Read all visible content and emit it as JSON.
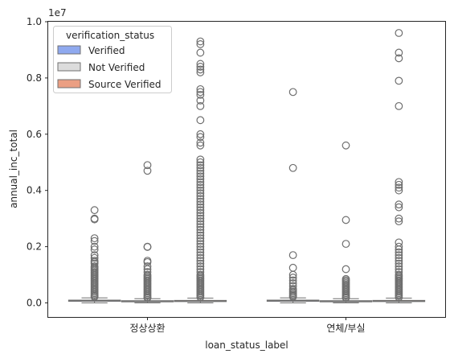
{
  "chart_data": {
    "type": "box",
    "title": "",
    "xlabel": "loan_status_label",
    "ylabel": "annual_inc_total",
    "y_offset_text": "1e7",
    "y_scale": 10000000,
    "ylim": [
      -0.05,
      1.0
    ],
    "yticks": [
      "0.0",
      "0.2",
      "0.4",
      "0.6",
      "0.8",
      "1.0"
    ],
    "ytick_values": [
      0.0,
      0.2,
      0.4,
      0.6,
      0.8,
      1.0
    ],
    "categories": [
      "정상상환",
      "연체/부실"
    ],
    "grid": false,
    "legend": {
      "title": "verification_status",
      "placement": "top-left"
    },
    "series": [
      {
        "name": "Verified",
        "color": "#8fa9ef",
        "boxes": [
          {
            "q1": 0.006,
            "median": 0.008,
            "q3": 0.01,
            "whisker_low": 0.0,
            "whisker_high": 0.018,
            "outliers": [
              0.33,
              0.3,
              0.297,
              0.23,
              0.22,
              0.2,
              0.19,
              0.17,
              0.16,
              0.15,
              0.145,
              0.14,
              0.13,
              0.125,
              0.12,
              0.115,
              0.11,
              0.105,
              0.1,
              0.095,
              0.09,
              0.085,
              0.08,
              0.075,
              0.07,
              0.065,
              0.06,
              0.055,
              0.05,
              0.045,
              0.04,
              0.035,
              0.03,
              0.025,
              0.022
            ]
          },
          {
            "q1": 0.006,
            "median": 0.008,
            "q3": 0.01,
            "whisker_low": 0.0,
            "whisker_high": 0.018,
            "outliers": [
              0.75,
              0.48,
              0.17,
              0.125,
              0.1,
              0.09,
              0.08,
              0.07,
              0.06,
              0.05,
              0.045,
              0.04,
              0.035,
              0.03,
              0.025,
              0.022
            ]
          }
        ]
      },
      {
        "name": "Not Verified",
        "color": "#dcdcdc",
        "boxes": [
          {
            "q1": 0.004,
            "median": 0.006,
            "q3": 0.008,
            "whisker_low": 0.0,
            "whisker_high": 0.015,
            "outliers": [
              0.49,
              0.47,
              0.2,
              0.199,
              0.15,
              0.145,
              0.13,
              0.12,
              0.11,
              0.1,
              0.095,
              0.09,
              0.085,
              0.08,
              0.075,
              0.07,
              0.065,
              0.06,
              0.055,
              0.05,
              0.045,
              0.04,
              0.035,
              0.03,
              0.025,
              0.02,
              0.018
            ]
          },
          {
            "q1": 0.004,
            "median": 0.006,
            "q3": 0.008,
            "whisker_low": 0.0,
            "whisker_high": 0.015,
            "outliers": [
              0.56,
              0.295,
              0.21,
              0.12,
              0.085,
              0.08,
              0.075,
              0.07,
              0.065,
              0.06,
              0.055,
              0.05,
              0.045,
              0.04,
              0.035,
              0.03,
              0.025,
              0.02,
              0.018
            ]
          }
        ]
      },
      {
        "name": "Source Verified",
        "color": "#eb9f83",
        "boxes": [
          {
            "q1": 0.005,
            "median": 0.007,
            "q3": 0.009,
            "whisker_low": 0.0,
            "whisker_high": 0.017,
            "outliers": [
              0.93,
              0.92,
              0.89,
              0.85,
              0.84,
              0.83,
              0.82,
              0.76,
              0.75,
              0.74,
              0.72,
              0.7,
              0.65,
              0.6,
              0.59,
              0.57,
              0.56,
              0.51,
              0.5,
              0.49,
              0.48,
              0.47,
              0.46,
              0.45,
              0.44,
              0.43,
              0.42,
              0.41,
              0.4,
              0.39,
              0.38,
              0.37,
              0.36,
              0.35,
              0.34,
              0.33,
              0.32,
              0.31,
              0.3,
              0.29,
              0.28,
              0.27,
              0.26,
              0.25,
              0.24,
              0.23,
              0.22,
              0.21,
              0.2,
              0.19,
              0.18,
              0.17,
              0.16,
              0.15,
              0.14,
              0.13,
              0.12,
              0.11,
              0.1,
              0.095,
              0.09,
              0.085,
              0.08,
              0.075,
              0.07,
              0.065,
              0.06,
              0.055,
              0.05,
              0.045,
              0.04,
              0.035,
              0.03,
              0.025,
              0.02
            ]
          },
          {
            "q1": 0.005,
            "median": 0.007,
            "q3": 0.009,
            "whisker_low": 0.0,
            "whisker_high": 0.017,
            "outliers": [
              0.96,
              0.89,
              0.87,
              0.79,
              0.7,
              0.43,
              0.42,
              0.41,
              0.4,
              0.35,
              0.34,
              0.3,
              0.29,
              0.215,
              0.2,
              0.19,
              0.18,
              0.17,
              0.16,
              0.15,
              0.14,
              0.13,
              0.12,
              0.11,
              0.1,
              0.095,
              0.09,
              0.085,
              0.08,
              0.075,
              0.07,
              0.065,
              0.06,
              0.055,
              0.05,
              0.045,
              0.04,
              0.035,
              0.03,
              0.025,
              0.02
            ]
          }
        ]
      }
    ],
    "colors": {
      "outlier_stroke": "#6e6e6e",
      "box_stroke": "#707070",
      "axis": "#262626"
    }
  }
}
